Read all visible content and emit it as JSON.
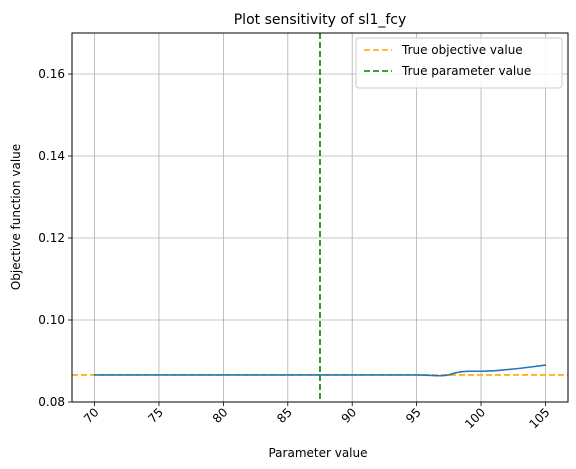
{
  "chart_data": {
    "type": "line",
    "title": "Plot sensitivity of sl1_fcy",
    "xlabel": "Parameter value",
    "ylabel": "Objective function value",
    "xlim": [
      68.25,
      106.75
    ],
    "ylim": [
      0.08,
      0.17
    ],
    "xticks": [
      70,
      75,
      80,
      85,
      90,
      95,
      100,
      105
    ],
    "yticks": [
      0.08,
      0.1,
      0.12,
      0.14,
      0.16
    ],
    "ytick_labels": [
      "0.08",
      "0.10",
      "0.12",
      "0.14",
      "0.16"
    ],
    "grid": true,
    "legend_position": "top-right",
    "series": [
      {
        "color": "#1f77b4",
        "x": [
          70,
          72,
          74,
          76,
          78,
          80,
          82,
          84,
          86,
          88,
          90,
          92,
          94,
          95,
          96,
          96.5,
          97,
          97.5,
          98,
          98.5,
          99,
          100,
          101,
          102,
          103,
          104,
          105
        ],
        "y": [
          0.0866,
          0.0866,
          0.0866,
          0.0866,
          0.0866,
          0.0866,
          0.0866,
          0.0866,
          0.0866,
          0.0866,
          0.0866,
          0.0866,
          0.0866,
          0.0866,
          0.0865,
          0.0864,
          0.0864,
          0.0866,
          0.0871,
          0.0874,
          0.0875,
          0.0875,
          0.0876,
          0.0879,
          0.0882,
          0.0886,
          0.089
        ]
      }
    ],
    "reference_lines": [
      {
        "name": "True objective value",
        "orientation": "horizontal",
        "value": 0.0866,
        "color": "#ffa500",
        "style": "dashed"
      },
      {
        "name": "True parameter value",
        "orientation": "vertical",
        "value": 87.5,
        "color": "#008000",
        "style": "dashed"
      }
    ]
  }
}
